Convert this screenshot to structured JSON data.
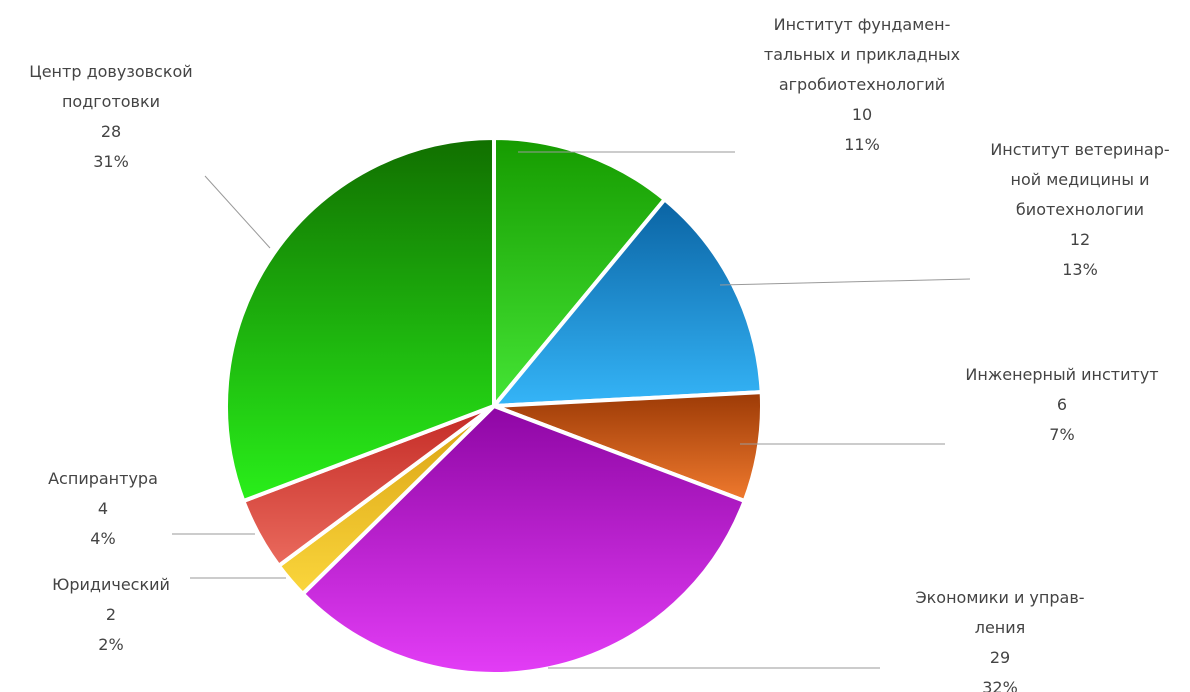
{
  "chart_data": {
    "type": "pie",
    "title": "",
    "slices": [
      {
        "label_lines": [
          "Институт фундамен-",
          "тальных и прикладных",
          "агробиотехнологий"
        ],
        "value": 10,
        "percent": "11%",
        "color_top": "#169b00",
        "color_bottom": "#45e535"
      },
      {
        "label_lines": [
          "Институт ветеринар-",
          "ной медицины и",
          "биотехнологии"
        ],
        "value": 12,
        "percent": "13%",
        "color_top": "#0a63a3",
        "color_bottom": "#35b5f8"
      },
      {
        "label_lines": [
          "Инженерный институт"
        ],
        "value": 6,
        "percent": "7%",
        "color_top": "#9c3a06",
        "color_bottom": "#f07a2e"
      },
      {
        "label_lines": [
          "Экономики и управ-",
          "ления"
        ],
        "value": 29,
        "percent": "32%",
        "color_top": "#8e06a4",
        "color_bottom": "#e33df6"
      },
      {
        "label_lines": [
          "Юридический"
        ],
        "value": 2,
        "percent": "2%",
        "color_top": "#d9a112",
        "color_bottom": "#fad63c"
      },
      {
        "label_lines": [
          "Аспирантура"
        ],
        "value": 4,
        "percent": "4%",
        "color_top": "#c32a25",
        "color_bottom": "#ea6a5d"
      },
      {
        "label_lines": [
          "Центр довузовской",
          "подготовки"
        ],
        "value": 28,
        "percent": "31%",
        "color_top": "#116f00",
        "color_bottom": "#29ef1a"
      }
    ]
  }
}
